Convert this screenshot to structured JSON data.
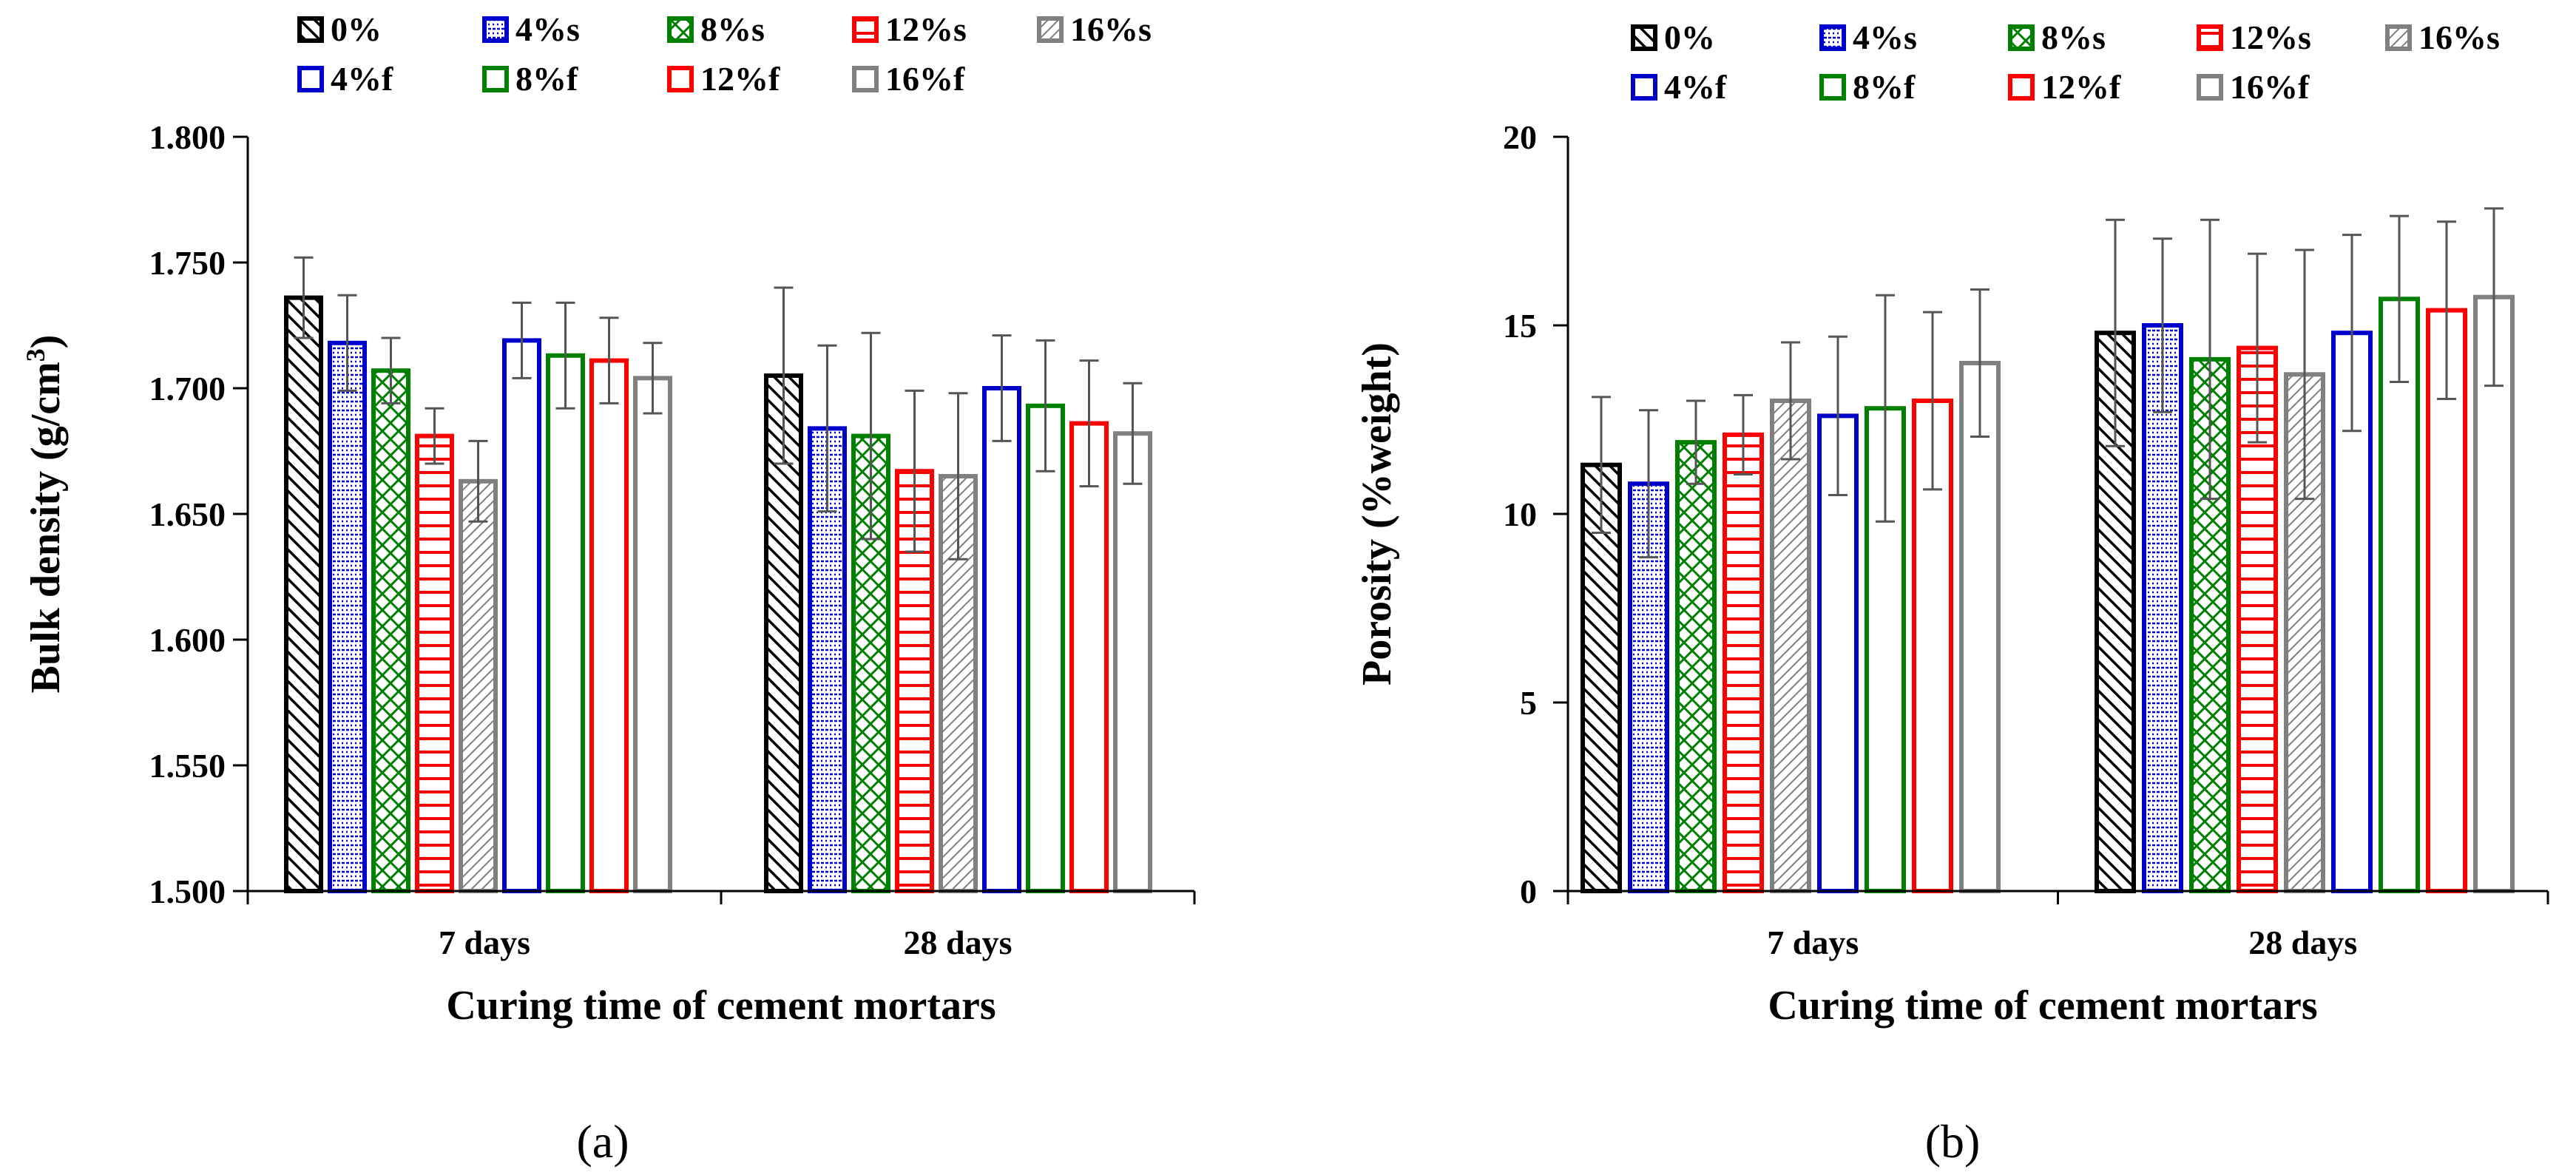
{
  "legend": [
    {
      "label": "0%",
      "color": "#000000",
      "pattern": "diag"
    },
    {
      "label": "4%s",
      "color": "#0000cc",
      "pattern": "dots"
    },
    {
      "label": "8%s",
      "color": "#008000",
      "pattern": "cross"
    },
    {
      "label": "12%s",
      "color": "#ff0000",
      "pattern": "hlines"
    },
    {
      "label": "16%s",
      "color": "#808080",
      "pattern": "diag2"
    },
    {
      "label": "4%f",
      "color": "#0000cc",
      "pattern": "none"
    },
    {
      "label": "8%f",
      "color": "#008000",
      "pattern": "none"
    },
    {
      "label": "12%f",
      "color": "#ff0000",
      "pattern": "none"
    },
    {
      "label": "16%f",
      "color": "#808080",
      "pattern": "none"
    }
  ],
  "chart_data": [
    {
      "type": "bar",
      "panel_label": "(a)",
      "title": "",
      "xlabel": "Curing time of cement mortars",
      "ylabel_main": "Bulk density (g/cm",
      "ylabel_sup": "3",
      "ylabel_end": ")",
      "ylim": [
        1.5,
        1.8
      ],
      "yticks": [
        "1.500",
        "1.550",
        "1.600",
        "1.650",
        "1.700",
        "1.750",
        "1.800"
      ],
      "ytick_values": [
        1.5,
        1.55,
        1.6,
        1.65,
        1.7,
        1.75,
        1.8
      ],
      "categories": [
        "7 days",
        "28 days"
      ],
      "series": [
        {
          "name": "0%",
          "values": [
            1.736,
            1.705
          ],
          "errors": [
            0.016,
            0.035
          ]
        },
        {
          "name": "4%s",
          "values": [
            1.718,
            1.684
          ],
          "errors": [
            0.019,
            0.033
          ]
        },
        {
          "name": "8%s",
          "values": [
            1.707,
            1.681
          ],
          "errors": [
            0.013,
            0.041
          ]
        },
        {
          "name": "12%s",
          "values": [
            1.681,
            1.667
          ],
          "errors": [
            0.011,
            0.032
          ]
        },
        {
          "name": "16%s",
          "values": [
            1.663,
            1.665
          ],
          "errors": [
            0.016,
            0.033
          ]
        },
        {
          "name": "4%f",
          "values": [
            1.719,
            1.7
          ],
          "errors": [
            0.015,
            0.021
          ]
        },
        {
          "name": "8%f",
          "values": [
            1.713,
            1.693
          ],
          "errors": [
            0.021,
            0.026
          ]
        },
        {
          "name": "12%f",
          "values": [
            1.711,
            1.686
          ],
          "errors": [
            0.017,
            0.025
          ]
        },
        {
          "name": "16%f",
          "values": [
            1.704,
            1.682
          ],
          "errors": [
            0.014,
            0.02
          ]
        }
      ]
    },
    {
      "type": "bar",
      "panel_label": "(b)",
      "title": "",
      "xlabel": "Curing time of cement mortars",
      "ylabel_main": "Porosity (%weight)",
      "ylabel_sup": "",
      "ylabel_end": "",
      "ylim": [
        0,
        20
      ],
      "yticks": [
        "0",
        "5",
        "10",
        "15",
        "20"
      ],
      "ytick_values": [
        0,
        5,
        10,
        15,
        20
      ],
      "categories": [
        "7 days",
        "28 days"
      ],
      "series": [
        {
          "name": "0%",
          "values": [
            11.3,
            14.8
          ],
          "errors": [
            1.8,
            3.0
          ]
        },
        {
          "name": "4%s",
          "values": [
            10.8,
            15.0
          ],
          "errors": [
            1.95,
            2.3
          ]
        },
        {
          "name": "8%s",
          "values": [
            11.9,
            14.1
          ],
          "errors": [
            1.1,
            3.7
          ]
        },
        {
          "name": "12%s",
          "values": [
            12.1,
            14.4
          ],
          "errors": [
            1.05,
            2.5
          ]
        },
        {
          "name": "16%s",
          "values": [
            13.0,
            13.7
          ],
          "errors": [
            1.55,
            3.3
          ]
        },
        {
          "name": "4%f",
          "values": [
            12.6,
            14.8
          ],
          "errors": [
            2.1,
            2.6
          ]
        },
        {
          "name": "8%f",
          "values": [
            12.8,
            15.7
          ],
          "errors": [
            3.0,
            2.2
          ]
        },
        {
          "name": "12%f",
          "values": [
            13.0,
            15.4
          ],
          "errors": [
            2.35,
            2.35
          ]
        },
        {
          "name": "16%f",
          "values": [
            14.0,
            15.75
          ],
          "errors": [
            1.95,
            2.35
          ]
        }
      ]
    }
  ]
}
